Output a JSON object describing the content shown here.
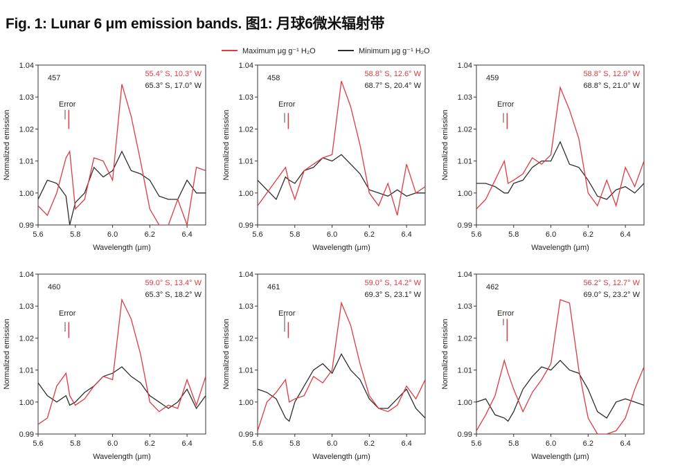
{
  "title": "Fig. 1: Lunar 6  μm emission bands. 图1: 月球6微米辐射带",
  "legend": {
    "red_label": "Maximum μg g⁻¹ H₂O",
    "black_label": "Minimum μg g⁻¹ H₂O"
  },
  "colors": {
    "red": "#e0393e",
    "black": "#2b2b2b",
    "error_grey": "#888888"
  },
  "chart_data": {
    "type": "line",
    "xlabel": "Wavelength (μm)",
    "ylabel": "Normalized emission",
    "xlim": [
      5.6,
      6.5
    ],
    "ylim": [
      0.99,
      1.04
    ],
    "xticks": [
      "5.6",
      "5.8",
      "6.0",
      "6.2",
      "6.4"
    ],
    "yticks": [
      "0.99",
      "1.00",
      "1.01",
      "1.02",
      "1.03",
      "1.04"
    ],
    "error_label": "Error",
    "x": [
      5.6,
      5.65,
      5.7,
      5.75,
      5.77,
      5.8,
      5.85,
      5.9,
      5.95,
      6.0,
      6.05,
      6.1,
      6.15,
      6.2,
      6.25,
      6.3,
      6.35,
      6.4,
      6.45,
      6.5
    ],
    "panels": [
      {
        "id": "457",
        "red_coord": "55.4° S, 10.3° W",
        "black_coord": "65.3° S, 17.0° W",
        "red": [
          0.996,
          0.993,
          1.0,
          1.011,
          1.013,
          0.995,
          0.998,
          1.011,
          1.01,
          1.004,
          1.034,
          1.024,
          1.01,
          0.995,
          0.99,
          0.99,
          0.998,
          0.99,
          1.008,
          1.007
        ],
        "black": [
          0.998,
          1.004,
          1.003,
          0.999,
          0.99,
          0.997,
          1.0,
          1.008,
          1.005,
          1.007,
          1.013,
          1.007,
          1.006,
          1.004,
          0.999,
          0.998,
          0.998,
          1.004,
          1.0,
          1.0
        ],
        "error_black": [
          1.023,
          1.026
        ],
        "error_red": [
          1.02,
          1.026
        ]
      },
      {
        "id": "458",
        "red_coord": "58.8° S, 12.6° W",
        "black_coord": "68.7° S, 20.4° W",
        "red": [
          0.996,
          1.0,
          1.004,
          1.008,
          1.003,
          0.998,
          1.007,
          1.009,
          1.011,
          1.012,
          1.035,
          1.027,
          1.015,
          1.0,
          0.996,
          1.003,
          0.993,
          1.009,
          1.0,
          1.002
        ],
        "black": [
          1.004,
          1.001,
          0.998,
          1.005,
          1.004,
          1.003,
          1.007,
          1.008,
          1.011,
          1.01,
          1.012,
          1.009,
          1.006,
          1.001,
          1.0,
          0.999,
          1.001,
          0.999,
          1.0,
          1.0
        ],
        "error_black": [
          1.022,
          1.025
        ],
        "error_red": [
          1.02,
          1.025
        ]
      },
      {
        "id": "459",
        "red_coord": "58.8° S, 12.9° W",
        "black_coord": "68.8° S, 21.0° W",
        "red": [
          0.995,
          0.998,
          1.004,
          1.01,
          1.003,
          1.004,
          1.006,
          1.011,
          1.009,
          1.012,
          1.033,
          1.026,
          1.017,
          1.0,
          0.996,
          1.004,
          0.996,
          1.008,
          1.002,
          1.01
        ],
        "black": [
          1.003,
          1.003,
          1.002,
          1.0,
          1.0,
          1.003,
          1.004,
          1.008,
          1.01,
          1.01,
          1.016,
          1.009,
          1.008,
          1.004,
          0.999,
          0.998,
          1.001,
          1.002,
          1.0,
          1.003
        ],
        "error_black": [
          1.022,
          1.025
        ],
        "error_red": [
          1.02,
          1.025
        ]
      },
      {
        "id": "460",
        "red_coord": "59.0° S, 13.4° W",
        "black_coord": "65.3° S, 18.2° W",
        "red": [
          0.993,
          0.995,
          1.005,
          1.009,
          1.002,
          0.999,
          1.001,
          1.005,
          1.008,
          1.007,
          1.032,
          1.026,
          1.015,
          1.0,
          0.997,
          0.999,
          0.998,
          1.007,
          0.999,
          1.008
        ],
        "black": [
          1.006,
          1.002,
          1.0,
          1.002,
          0.999,
          1.0,
          1.003,
          1.005,
          1.008,
          1.009,
          1.011,
          1.008,
          1.006,
          1.002,
          1.0,
          0.998,
          1.0,
          1.004,
          0.998,
          1.002
        ],
        "error_black": [
          1.022,
          1.025
        ],
        "error_red": [
          1.02,
          1.025
        ]
      },
      {
        "id": "461",
        "red_coord": "59.0° S, 14.2° W",
        "black_coord": "69.3° S, 23.1° W",
        "red": [
          0.991,
          1.0,
          1.003,
          1.007,
          1.0,
          1.001,
          1.002,
          1.008,
          1.006,
          1.01,
          1.031,
          1.024,
          1.012,
          1.002,
          0.998,
          0.997,
          0.999,
          1.005,
          1.001,
          1.007
        ],
        "black": [
          1.004,
          1.003,
          1.001,
          0.995,
          0.994,
          1.0,
          1.005,
          1.01,
          1.012,
          1.009,
          1.015,
          1.01,
          1.007,
          1.001,
          0.998,
          0.998,
          1.001,
          1.004,
          0.998,
          0.995
        ],
        "error_black": [
          1.022,
          1.027
        ],
        "error_red": [
          1.02,
          1.025
        ]
      },
      {
        "id": "462",
        "red_coord": "56.2° S, 12.7° W",
        "black_coord": "69.0° S, 23.2° W",
        "red": [
          0.991,
          0.996,
          1.002,
          1.013,
          1.009,
          1.004,
          0.997,
          1.003,
          1.007,
          1.012,
          1.032,
          1.031,
          1.01,
          0.995,
          0.99,
          0.99,
          0.991,
          0.995,
          1.004,
          1.011
        ],
        "black": [
          1.0,
          1.001,
          0.996,
          0.995,
          0.994,
          0.997,
          1.004,
          1.008,
          1.011,
          1.01,
          1.013,
          1.01,
          1.009,
          1.004,
          0.997,
          0.995,
          1.0,
          1.001,
          1.0,
          0.999
        ],
        "error_black": [
          1.024,
          1.026
        ],
        "error_red": [
          1.019,
          1.026
        ]
      }
    ]
  }
}
